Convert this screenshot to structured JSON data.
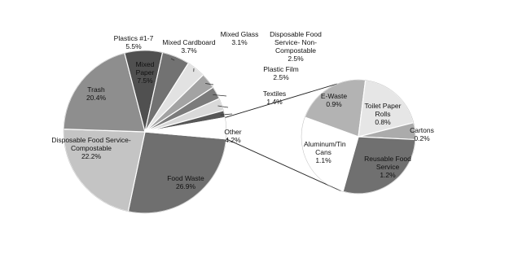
{
  "chart_data": {
    "type": "pie",
    "categories": [
      "Food Waste",
      "Disposable Food Service- Compostable",
      "Trash",
      "Mixed Paper",
      "Plastics #1-7",
      "Mixed Cardboard",
      "Mixed Glass",
      "Disposable Food Service- Non-Compostable",
      "Plastic Film",
      "Textiles",
      "Other"
    ],
    "values": [
      26.9,
      22.2,
      20.4,
      7.5,
      5.5,
      3.7,
      3.1,
      2.5,
      2.5,
      1.4,
      4.2
    ],
    "value_labels": [
      "26.9%",
      "22.2%",
      "20.4%",
      "7.5%",
      "5.5%",
      "3.7%",
      "3.1%",
      "2.5%",
      "2.5%",
      "1.4%",
      "4.2%"
    ],
    "colors": [
      "#6f6f6f",
      "#c4c4c4",
      "#8e8e8e",
      "#505050",
      "#727272",
      "#e2e2e2",
      "#a3a3a3",
      "#7b7b7b",
      "#d9d9d9",
      "#575757",
      "#ffffff"
    ],
    "secondary": {
      "categories": [
        "E-Waste",
        "Toilet Paper Rolls",
        "Cartons",
        "Reusable Food Service",
        "Aluminum/Tin Cans"
      ],
      "values": [
        0.9,
        0.8,
        0.2,
        1.2,
        1.1
      ],
      "value_labels": [
        "0.9%",
        "0.8%",
        "0.2%",
        "1.2%",
        "1.1%"
      ],
      "colors": [
        "#b3b3b3",
        "#e6e6e6",
        "#ababab",
        "#707070",
        "#ffffff"
      ]
    }
  }
}
